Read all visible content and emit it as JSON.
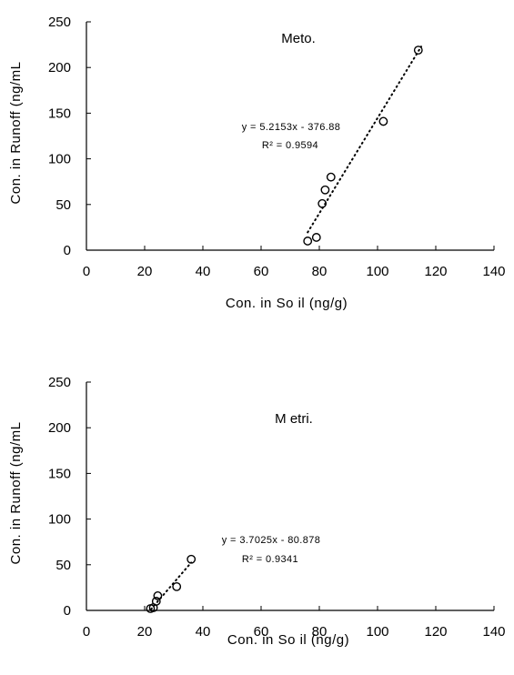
{
  "chart_data": [
    {
      "type": "scatter",
      "title": "Meto.",
      "xlabel": "Con. in So il (ng/g)",
      "ylabel": "Con. in Runoff (ng/mL",
      "xlim": [
        0,
        140
      ],
      "ylim": [
        0,
        250
      ],
      "xticks": [
        0,
        20,
        40,
        60,
        80,
        100,
        120,
        140
      ],
      "yticks": [
        0,
        50,
        100,
        150,
        200,
        250
      ],
      "grid": false,
      "series": [
        {
          "x": [
            76,
            79,
            81,
            82,
            84,
            102,
            114
          ],
          "y": [
            10,
            14,
            51,
            66,
            80,
            141,
            219
          ]
        }
      ],
      "trendline": {
        "x": [
          76,
          115
        ]
      },
      "annotations": [
        "y = 5.2153x - 376.88",
        "R² = 0.9594"
      ]
    },
    {
      "type": "scatter",
      "title": "M etri.",
      "xlabel": "Con. in So il (ng/g)",
      "ylabel": "Con. in Runoff (ng/mL",
      "xlim": [
        0,
        140
      ],
      "ylim": [
        0,
        250
      ],
      "xticks": [
        0,
        20,
        40,
        60,
        80,
        100,
        120,
        140
      ],
      "yticks": [
        0,
        50,
        100,
        150,
        200,
        250
      ],
      "grid": false,
      "series": [
        {
          "x": [
            22,
            23,
            24,
            24.5,
            31,
            36
          ],
          "y": [
            2,
            3,
            10,
            16,
            26,
            56
          ]
        }
      ],
      "trendline": {
        "x": [
          22.2,
          36
        ]
      },
      "annotations": [
        "y = 3.7025x - 80.878",
        "R² = 0.9341"
      ]
    }
  ]
}
